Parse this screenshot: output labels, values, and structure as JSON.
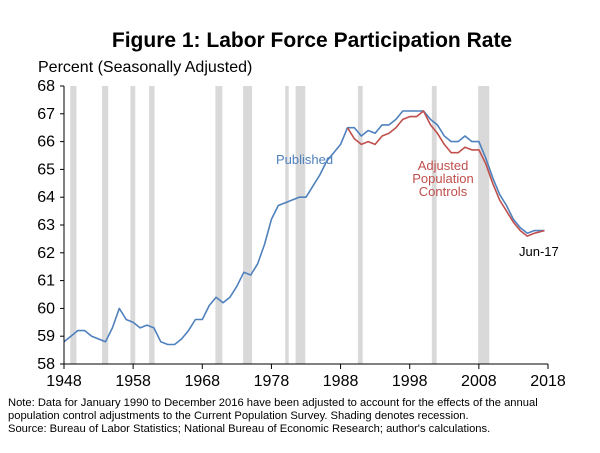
{
  "chart_data": {
    "type": "line",
    "title": "Figure 1: Labor Force Participation Rate",
    "ylabel": "Percent (Seasonally Adjusted)",
    "xlabel": "",
    "xlim": [
      1948,
      2018
    ],
    "ylim": [
      58,
      68
    ],
    "x_ticks": [
      1948,
      1958,
      1968,
      1978,
      1988,
      1998,
      2008,
      2018
    ],
    "y_ticks": [
      58,
      59,
      60,
      61,
      62,
      63,
      64,
      65,
      66,
      67,
      68
    ],
    "grid": false,
    "recessions": [
      [
        1948.9,
        1949.8
      ],
      [
        1953.5,
        1954.4
      ],
      [
        1957.6,
        1958.3
      ],
      [
        1960.3,
        1961.1
      ],
      [
        1969.9,
        1970.9
      ],
      [
        1973.9,
        1975.2
      ],
      [
        1980.0,
        1980.5
      ],
      [
        1981.5,
        1982.9
      ],
      [
        1990.5,
        1991.2
      ],
      [
        2001.2,
        2001.9
      ],
      [
        2007.9,
        2009.5
      ]
    ],
    "recession_color": "#d9d9d9",
    "series": [
      {
        "name": "Published",
        "color": "#4f81bd",
        "x": [
          1948,
          1949,
          1950,
          1951,
          1952,
          1953,
          1954,
          1955,
          1956,
          1957,
          1958,
          1959,
          1960,
          1961,
          1962,
          1963,
          1964,
          1965,
          1966,
          1967,
          1968,
          1969,
          1970,
          1971,
          1972,
          1973,
          1974,
          1975,
          1976,
          1977,
          1978,
          1979,
          1980,
          1981,
          1982,
          1983,
          1984,
          1985,
          1986,
          1987,
          1988,
          1989,
          1990,
          1991,
          1992,
          1993,
          1994,
          1995,
          1996,
          1997,
          1998,
          1999,
          2000,
          2001,
          2002,
          2003,
          2004,
          2005,
          2006,
          2007,
          2008,
          2009,
          2010,
          2011,
          2012,
          2013,
          2014,
          2015,
          2016,
          2017.5
        ],
        "y": [
          58.8,
          59.0,
          59.2,
          59.2,
          59.0,
          58.9,
          58.8,
          59.3,
          60.0,
          59.6,
          59.5,
          59.3,
          59.4,
          59.3,
          58.8,
          58.7,
          58.7,
          58.9,
          59.2,
          59.6,
          59.6,
          60.1,
          60.4,
          60.2,
          60.4,
          60.8,
          61.3,
          61.2,
          61.6,
          62.3,
          63.2,
          63.7,
          63.8,
          63.9,
          64.0,
          64.0,
          64.4,
          64.8,
          65.3,
          65.6,
          65.9,
          66.5,
          66.5,
          66.2,
          66.4,
          66.3,
          66.6,
          66.6,
          66.8,
          67.1,
          67.1,
          67.1,
          67.1,
          66.8,
          66.6,
          66.2,
          66.0,
          66.0,
          66.2,
          66.0,
          66.0,
          65.4,
          64.7,
          64.1,
          63.7,
          63.2,
          62.9,
          62.7,
          62.8,
          62.8
        ]
      },
      {
        "name": "Adjusted Population Controls",
        "color": "#c0504d",
        "x": [
          1989,
          1990,
          1991,
          1992,
          1993,
          1994,
          1995,
          1996,
          1997,
          1998,
          1999,
          2000,
          2001,
          2002,
          2003,
          2004,
          2005,
          2006,
          2007,
          2008,
          2009,
          2010,
          2011,
          2012,
          2013,
          2014,
          2015,
          2016,
          2017.5
        ],
        "y": [
          66.5,
          66.1,
          65.9,
          66.0,
          65.9,
          66.2,
          66.3,
          66.5,
          66.8,
          66.9,
          66.9,
          67.1,
          66.6,
          66.3,
          65.9,
          65.6,
          65.6,
          65.8,
          65.7,
          65.7,
          65.2,
          64.5,
          63.9,
          63.5,
          63.1,
          62.8,
          62.6,
          62.7,
          62.8
        ]
      }
    ],
    "annotations": {
      "published": "Published",
      "adjusted": [
        "Adjusted",
        "Population",
        "Controls"
      ],
      "end_label": "Jun-17"
    }
  },
  "notes": {
    "line1": "Note: Data for January 1990 to December 2016 have been adjusted to account for the effects of the annual",
    "line2": "population control adjustments to the Current Population Survey. Shading denotes recession.",
    "line3": "Source: Bureau of Labor Statistics; National Bureau of Economic Research; author's calculations."
  }
}
